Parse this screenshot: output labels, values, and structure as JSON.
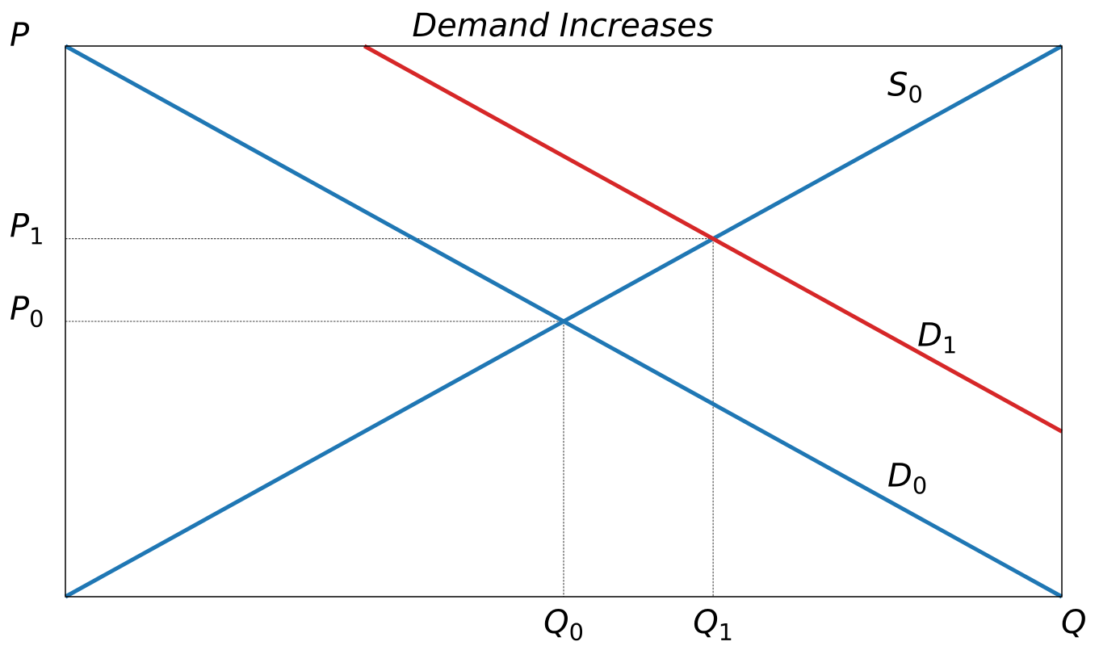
{
  "chart_data": {
    "type": "line",
    "title": "Demand Increases",
    "xlabel": "Q",
    "ylabel": "P",
    "xlim": [
      0,
      10
    ],
    "ylim": [
      0,
      10
    ],
    "grid": false,
    "series": [
      {
        "name": "S_0",
        "label": "S",
        "sub": "0",
        "color": "#1f77b4",
        "x": [
          0,
          10
        ],
        "y": [
          0,
          10
        ]
      },
      {
        "name": "D_0",
        "label": "D",
        "sub": "0",
        "color": "#1f77b4",
        "x": [
          0,
          10
        ],
        "y": [
          10,
          0
        ]
      },
      {
        "name": "D_1",
        "label": "D",
        "sub": "1",
        "color": "#d62728",
        "x": [
          3,
          10
        ],
        "y": [
          10,
          3
        ]
      }
    ],
    "equilibria": [
      {
        "q": 5.0,
        "p": 5.0
      },
      {
        "q": 6.5,
        "p": 6.5
      }
    ],
    "x_tick_labels": [
      {
        "label": "Q",
        "sub": "0",
        "value": 5.0
      },
      {
        "label": "Q",
        "sub": "1",
        "value": 6.5
      }
    ],
    "y_tick_labels": [
      {
        "label": "P",
        "sub": "0",
        "value": 5.0
      },
      {
        "label": "P",
        "sub": "1",
        "value": 6.5
      }
    ],
    "curve_labels": [
      {
        "label": "S",
        "sub": "0",
        "x": 8.25,
        "y": 9.1
      },
      {
        "label": "D",
        "sub": "1",
        "x": 8.55,
        "y": 4.55
      },
      {
        "label": "D",
        "sub": "0",
        "x": 8.25,
        "y": 2.0
      }
    ]
  }
}
